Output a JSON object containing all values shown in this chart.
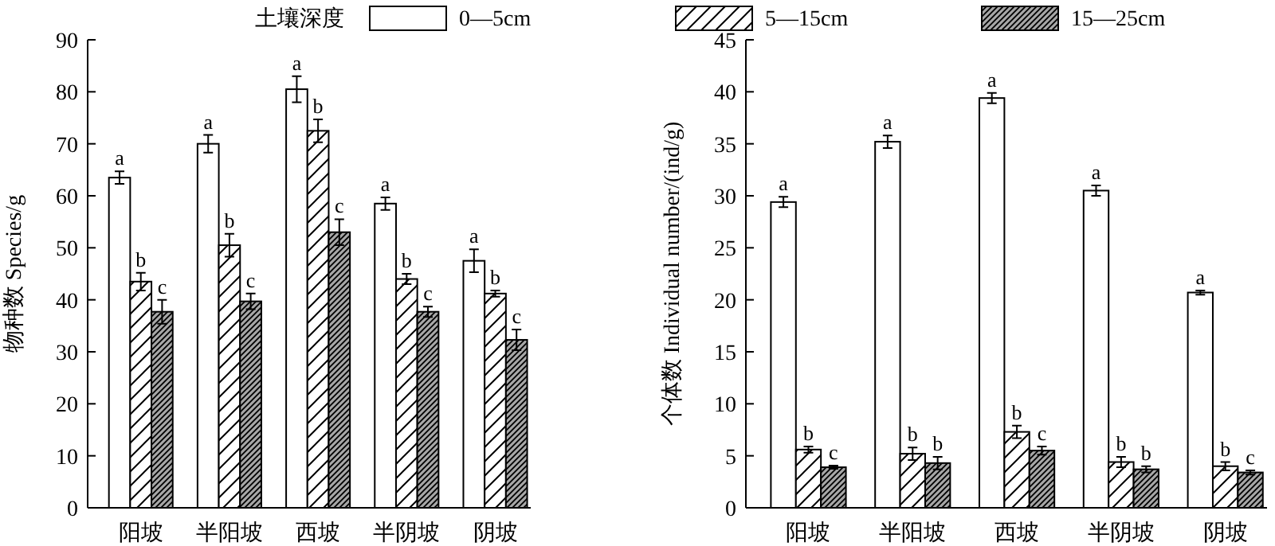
{
  "chart_data": [
    {
      "type": "bar",
      "ylabel": "物种数 Species/g",
      "legend_title": "土壤深度",
      "legend": "top",
      "grid": false,
      "categories": [
        "阳坡",
        "半阳坡",
        "西坡",
        "半阴坡",
        "阴坡"
      ],
      "ylim": [
        0,
        90
      ],
      "yticks": [
        0,
        10,
        20,
        30,
        40,
        50,
        60,
        70,
        80,
        90
      ],
      "series": [
        {
          "name": "0—5cm",
          "color": "#ffffff",
          "values": [
            63.5,
            70,
            80.5,
            58.5,
            47.5
          ],
          "errors": [
            1.2,
            1.7,
            2.5,
            1.2,
            2.2
          ],
          "value_labels": [
            "a",
            "a",
            "a",
            "a",
            "a"
          ]
        },
        {
          "name": "5—15cm",
          "color": "#ffffff",
          "values": [
            43.5,
            50.5,
            72.5,
            44,
            41.2
          ],
          "errors": [
            1.7,
            2.2,
            2.2,
            1,
            0.6
          ],
          "value_labels": [
            "b",
            "b",
            "b",
            "b",
            "b"
          ]
        },
        {
          "name": "15—25cm",
          "color": "#a6a6a6",
          "values": [
            37.7,
            39.7,
            53,
            37.7,
            32.3
          ],
          "errors": [
            2.3,
            1.5,
            2.5,
            1,
            2
          ],
          "value_labels": [
            "c",
            "c",
            "c",
            "c",
            "c"
          ]
        }
      ]
    },
    {
      "type": "bar",
      "ylabel": "个体数 Individual number/(ind/g)",
      "grid": false,
      "categories": [
        "阳坡",
        "半阳坡",
        "西坡",
        "半阴坡",
        "阴坡"
      ],
      "ylim": [
        0,
        45
      ],
      "yticks": [
        0,
        5,
        10,
        15,
        20,
        25,
        30,
        35,
        40,
        45
      ],
      "series": [
        {
          "color": "#ffffff",
          "values": [
            29.4,
            35.2,
            39.4,
            30.5,
            20.7
          ],
          "errors": [
            0.5,
            0.6,
            0.5,
            0.5,
            0.2
          ],
          "value_labels": [
            "a",
            "a",
            "a",
            "a",
            "a"
          ]
        },
        {
          "color": "#ffffff",
          "values": [
            5.6,
            5.2,
            7.3,
            4.4,
            4.0
          ],
          "errors": [
            0.3,
            0.6,
            0.6,
            0.5,
            0.4
          ],
          "value_labels": [
            "b",
            "b",
            "b",
            "b",
            "b"
          ]
        },
        {
          "color": "#a6a6a6",
          "values": [
            3.9,
            4.3,
            5.5,
            3.7,
            3.4
          ],
          "errors": [
            0.15,
            0.6,
            0.4,
            0.3,
            0.2
          ],
          "value_labels": [
            "c",
            "b",
            "c",
            "b",
            "c"
          ]
        }
      ]
    }
  ]
}
